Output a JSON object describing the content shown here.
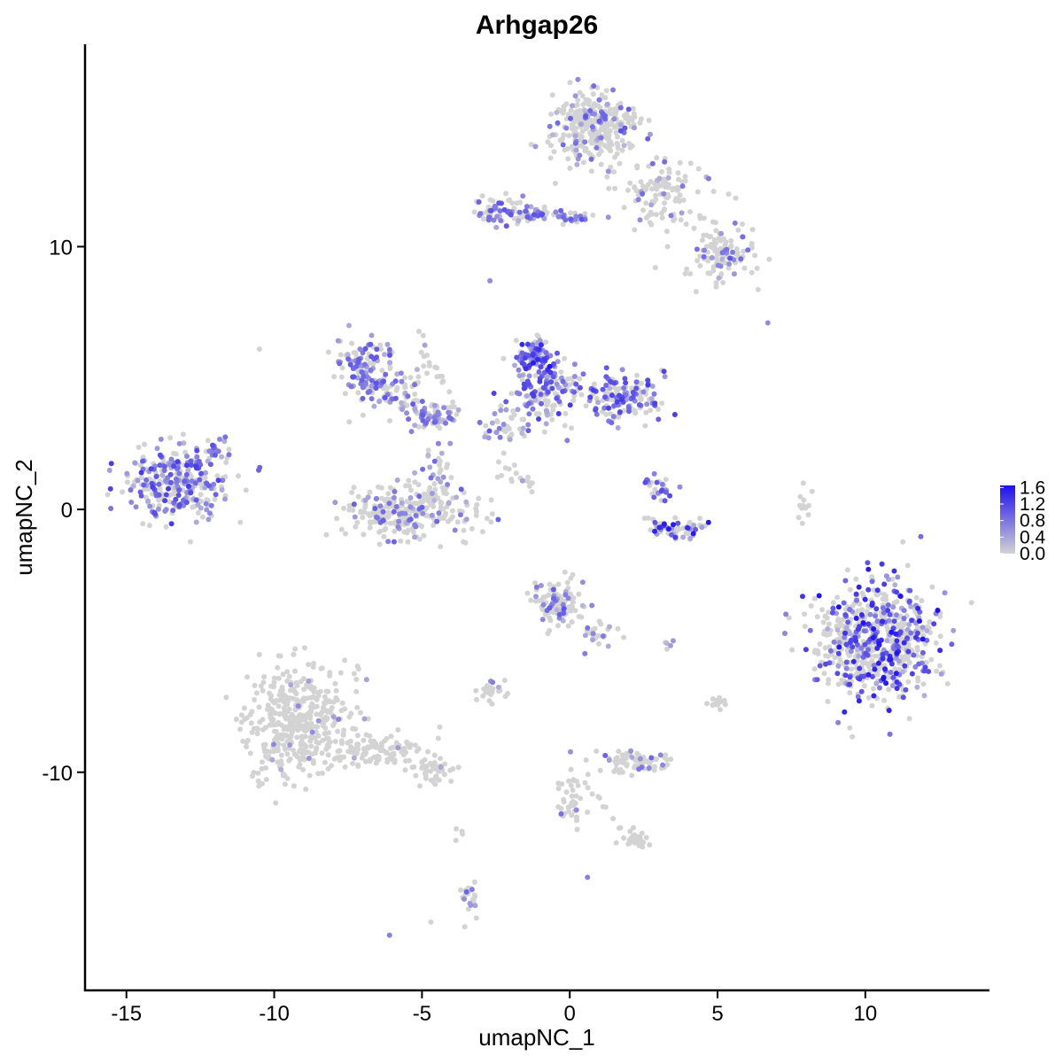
{
  "chart_data": {
    "type": "scatter",
    "title": "Arhgap26",
    "xlabel": "umapNC_1",
    "ylabel": "umapNC_2",
    "xlim": [
      -16.4,
      14.2
    ],
    "ylim": [
      -18.3,
      17.7
    ],
    "x_ticks": [
      -15,
      -10,
      -5,
      0,
      5,
      10
    ],
    "x_tick_labels": [
      "-15",
      "-10",
      "-5",
      "0",
      "5",
      "10"
    ],
    "y_ticks": [
      -10,
      0,
      10
    ],
    "y_tick_labels": [
      "-10",
      "0",
      "10"
    ],
    "grid": false,
    "legend_position": "right",
    "colorscale": {
      "low_color": "#d3d3d3",
      "high_color": "#1f10f0",
      "min": 0.0,
      "max": 1.65,
      "ticks": [
        0.0,
        0.4,
        0.8,
        1.2,
        1.6
      ],
      "tick_labels": [
        "0.0",
        "0.4",
        "0.8",
        "1.2",
        "1.6"
      ]
    },
    "clusters": [
      {
        "cx": -13.4,
        "cy": 1.0,
        "sx": 1.05,
        "sy": 0.75,
        "n": 300,
        "frac": 0.55,
        "emax": 1.3
      },
      {
        "cx": -12.0,
        "cy": 2.0,
        "sx": 0.35,
        "sy": 0.5,
        "n": 15,
        "frac": 0.55,
        "emax": 1.1
      },
      {
        "cx": -6.9,
        "cy": 5.4,
        "sx": 0.55,
        "sy": 0.65,
        "n": 120,
        "frac": 0.6,
        "emax": 1.1
      },
      {
        "cx": -6.0,
        "cy": 4.5,
        "sx": 0.7,
        "sy": 0.4,
        "n": 60,
        "frac": 0.35,
        "emax": 1.1
      },
      {
        "cx": -4.7,
        "cy": 3.6,
        "sx": 0.5,
        "sy": 0.3,
        "n": 70,
        "frac": 0.5,
        "emax": 1.0
      },
      {
        "cx": -4.9,
        "cy": 5.6,
        "sx": 0.2,
        "sy": 1.0,
        "n": 15,
        "frac": 0.1,
        "emax": 0.8
      },
      {
        "cx": -4.4,
        "cy": 1.8,
        "sx": 0.3,
        "sy": 0.7,
        "n": 30,
        "frac": 0.4,
        "emax": 1.0
      },
      {
        "cx": -5.5,
        "cy": -0.1,
        "sx": 1.3,
        "sy": 0.6,
        "n": 270,
        "frac": 0.25,
        "emax": 1.0
      },
      {
        "cx": -1.2,
        "cy": 5.9,
        "sx": 0.35,
        "sy": 0.4,
        "n": 90,
        "frac": 0.8,
        "emax": 1.6
      },
      {
        "cx": -0.9,
        "cy": 4.5,
        "sx": 0.7,
        "sy": 0.8,
        "n": 160,
        "frac": 0.55,
        "emax": 1.3
      },
      {
        "cx": 1.7,
        "cy": 4.3,
        "sx": 0.9,
        "sy": 0.5,
        "n": 150,
        "frac": 0.55,
        "emax": 1.3
      },
      {
        "cx": -2.3,
        "cy": 3.1,
        "sx": 0.6,
        "sy": 0.4,
        "n": 30,
        "frac": 0.45,
        "emax": 1.1
      },
      {
        "cx": 3.0,
        "cy": 0.8,
        "sx": 0.3,
        "sy": 0.4,
        "n": 25,
        "frac": 0.6,
        "emax": 1.2
      },
      {
        "cx": 3.6,
        "cy": -0.7,
        "sx": 0.6,
        "sy": 0.25,
        "n": 55,
        "frac": 0.55,
        "emax": 1.6
      },
      {
        "cx": 0.9,
        "cy": 14.5,
        "sx": 0.8,
        "sy": 0.8,
        "n": 320,
        "frac": 0.2,
        "emax": 1.1
      },
      {
        "cx": 3.2,
        "cy": 12.1,
        "sx": 0.9,
        "sy": 0.7,
        "n": 100,
        "frac": 0.12,
        "emax": 0.9
      },
      {
        "cx": 5.2,
        "cy": 9.7,
        "sx": 0.7,
        "sy": 0.6,
        "n": 100,
        "frac": 0.2,
        "emax": 1.1
      },
      {
        "cx": -2.4,
        "cy": 11.4,
        "sx": 0.5,
        "sy": 0.35,
        "n": 60,
        "frac": 0.45,
        "emax": 1.1
      },
      {
        "cx": -0.7,
        "cy": 11.2,
        "sx": 0.9,
        "sy": 0.2,
        "n": 40,
        "frac": 0.55,
        "emax": 1.1
      },
      {
        "cx": 10.4,
        "cy": -5.0,
        "sx": 1.25,
        "sy": 1.25,
        "n": 650,
        "frac": 0.4,
        "emax": 1.65
      },
      {
        "cx": -9.2,
        "cy": -8.1,
        "sx": 1.0,
        "sy": 1.3,
        "n": 430,
        "frac": 0.03,
        "emax": 0.8
      },
      {
        "cx": -6.4,
        "cy": -9.2,
        "sx": 1.0,
        "sy": 0.4,
        "n": 110,
        "frac": 0.02,
        "emax": 0.7
      },
      {
        "cx": -4.6,
        "cy": -10.0,
        "sx": 0.5,
        "sy": 0.25,
        "n": 40,
        "frac": 0.02,
        "emax": 0.6
      },
      {
        "cx": -0.4,
        "cy": -3.6,
        "sx": 0.45,
        "sy": 0.5,
        "n": 120,
        "frac": 0.25,
        "emax": 1.1
      },
      {
        "cx": 1.0,
        "cy": -4.7,
        "sx": 0.3,
        "sy": 0.4,
        "n": 25,
        "frac": 0.25,
        "emax": 1.0
      },
      {
        "cx": -2.6,
        "cy": -6.9,
        "sx": 0.35,
        "sy": 0.2,
        "n": 30,
        "frac": 0.2,
        "emax": 1.0
      },
      {
        "cx": 2.3,
        "cy": -9.6,
        "sx": 0.7,
        "sy": 0.25,
        "n": 75,
        "frac": 0.1,
        "emax": 1.0
      },
      {
        "cx": 0.0,
        "cy": -11.1,
        "sx": 0.25,
        "sy": 0.7,
        "n": 40,
        "frac": 0.06,
        "emax": 1.0
      },
      {
        "cx": 2.2,
        "cy": -12.6,
        "sx": 0.4,
        "sy": 0.2,
        "n": 30,
        "frac": 0.02,
        "emax": 0.6
      },
      {
        "cx": -3.4,
        "cy": -14.9,
        "sx": 0.2,
        "sy": 0.5,
        "n": 25,
        "frac": 0.25,
        "emax": 1.0
      },
      {
        "cx": 7.9,
        "cy": 0.2,
        "sx": 0.15,
        "sy": 0.5,
        "n": 12,
        "frac": 0.0,
        "emax": 0.5
      },
      {
        "cx": 5.0,
        "cy": -7.4,
        "sx": 0.25,
        "sy": 0.15,
        "n": 12,
        "frac": 0.05,
        "emax": 0.6
      },
      {
        "cx": 3.3,
        "cy": -5.1,
        "sx": 0.1,
        "sy": 0.1,
        "n": 4,
        "frac": 0.25,
        "emax": 0.6
      }
    ],
    "trails": [
      {
        "from": [
          -3.2,
          11.2
        ],
        "to": [
          0.8,
          11.1
        ],
        "n": 30,
        "frac": 0.6,
        "emax": 1.1
      },
      {
        "from": [
          1.3,
          13.0
        ],
        "to": [
          5.5,
          9.5
        ],
        "n": 30,
        "frac": 0.15,
        "emax": 0.9
      },
      {
        "from": [
          -4.5,
          5.5
        ],
        "to": [
          -3.9,
          3.8
        ],
        "n": 10,
        "frac": 0.0,
        "emax": 0.4
      },
      {
        "from": [
          -2.2,
          1.6
        ],
        "to": [
          -1.2,
          0.7
        ],
        "n": 6,
        "frac": 0.0,
        "emax": 0.4
      },
      {
        "from": [
          -2.1,
          1.5
        ],
        "to": [
          -1.2,
          1.0
        ],
        "n": 5,
        "frac": 0.0,
        "emax": 0.4
      },
      {
        "from": [
          -2.5,
          1.3
        ],
        "to": [
          -1.2,
          0.8
        ],
        "n": 5,
        "frac": 0.1,
        "emax": 0.5
      },
      {
        "from": [
          2.4,
          -0.2
        ],
        "to": [
          3.3,
          -0.8
        ],
        "n": 8,
        "frac": 0.3,
        "emax": 0.9
      },
      {
        "from": [
          0.4,
          -10.3
        ],
        "to": [
          1.8,
          -12.2
        ],
        "n": 10,
        "frac": 0.0,
        "emax": 0.5
      },
      {
        "from": [
          -2.3,
          1.8
        ],
        "to": [
          -2.0,
          3.0
        ],
        "n": 6,
        "frac": 0.0,
        "emax": 0.4
      },
      {
        "from": [
          -11.8,
          2.8
        ],
        "to": [
          -12.7,
          1.5
        ],
        "n": 10,
        "frac": 0.5,
        "emax": 1.0
      },
      {
        "from": [
          -3.7,
          -11.7
        ],
        "to": [
          -3.8,
          -12.6
        ],
        "n": 4,
        "frac": 0.0,
        "emax": 0.4
      }
    ],
    "singletons": [
      {
        "x": -10.5,
        "y": 6.1,
        "e": 0.0
      },
      {
        "x": 6.7,
        "y": 7.1,
        "e": 0.6
      },
      {
        "x": -2.7,
        "y": 8.7,
        "e": 0.6
      },
      {
        "x": -6.1,
        "y": -16.2,
        "e": 0.7
      },
      {
        "x": -4.7,
        "y": -15.7,
        "e": 0.0
      },
      {
        "x": 0.6,
        "y": -14.0,
        "e": 0.7
      },
      {
        "x": 0.9,
        "y": -9.2,
        "e": 0.0
      },
      {
        "x": 3.5,
        "y": -5.0,
        "e": 0.5
      },
      {
        "x": 7.9,
        "y": 1.0,
        "e": 0.0
      }
    ]
  }
}
